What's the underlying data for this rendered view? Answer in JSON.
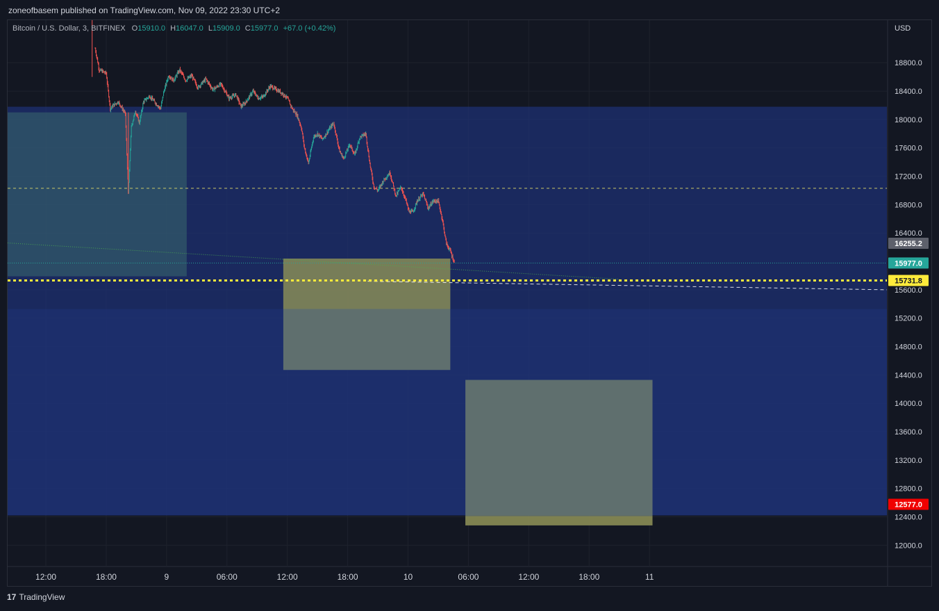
{
  "publisher_line": "zoneofbasem published on TradingView.com, Nov 09, 2022 23:30 UTC+2",
  "legend": {
    "symbol": "Bitcoin / U.S. Dollar, 3, BITFINEX",
    "open_key": "O",
    "open": "15910.0",
    "high_key": "H",
    "high": "16047.0",
    "low_key": "L",
    "low": "15909.0",
    "close_key": "C",
    "close": "15977.0",
    "change": "+67.0 (+0.42%)"
  },
  "footer": {
    "logo_glyph": "17",
    "brand": "TradingView"
  },
  "colors": {
    "background": "#131722",
    "up": "#26a69a",
    "down": "#ef5350",
    "zone_blue": "#1e3278",
    "box_teal": "#3b6a6e",
    "box_grey": "#6b7a6e",
    "box_olive": "#8d8a48",
    "tag_last": "#26a69a",
    "tag_yellow": "#ffeb3b",
    "tag_red": "#f00000",
    "tag_grey": "#5d606b"
  },
  "chart_data": {
    "type": "candlestick",
    "currency": "USD",
    "ylim": [
      11700,
      19400
    ],
    "y_ticks": [
      "18800.0",
      "18400.0",
      "18000.0",
      "17600.0",
      "17200.0",
      "16800.0",
      "16400.0",
      "15600.0",
      "15200.0",
      "14800.0",
      "14400.0",
      "14000.0",
      "13600.0",
      "13200.0",
      "12800.0",
      "12400.0",
      "12000.0"
    ],
    "x_ticks": [
      "12:00",
      "18:00",
      "9",
      "06:00",
      "12:00",
      "18:00",
      "10",
      "06:00",
      "12:00",
      "18:00",
      "11"
    ],
    "x_tick_hours": [
      12,
      18,
      24,
      30,
      36,
      42,
      48,
      54,
      60,
      66,
      72
    ],
    "x_range_hours": [
      8.2,
      95.6
    ],
    "price_path": [
      [
        16.9,
        19000
      ],
      [
        17.3,
        18700
      ],
      [
        18.0,
        18650
      ],
      [
        18.4,
        18150
      ],
      [
        18.7,
        18200
      ],
      [
        19.2,
        18250
      ],
      [
        19.9,
        18080
      ],
      [
        20.2,
        16950
      ],
      [
        20.5,
        17900
      ],
      [
        20.9,
        18120
      ],
      [
        21.3,
        17950
      ],
      [
        21.7,
        18250
      ],
      [
        22.3,
        18330
      ],
      [
        22.8,
        18250
      ],
      [
        23.4,
        18150
      ],
      [
        23.7,
        18380
      ],
      [
        24.2,
        18620
      ],
      [
        24.7,
        18550
      ],
      [
        25.3,
        18700
      ],
      [
        25.9,
        18550
      ],
      [
        26.5,
        18620
      ],
      [
        27.1,
        18450
      ],
      [
        27.9,
        18570
      ],
      [
        28.6,
        18420
      ],
      [
        29.4,
        18500
      ],
      [
        30.2,
        18300
      ],
      [
        30.9,
        18350
      ],
      [
        31.4,
        18180
      ],
      [
        31.9,
        18250
      ],
      [
        32.6,
        18400
      ],
      [
        33.1,
        18300
      ],
      [
        33.6,
        18320
      ],
      [
        34.3,
        18470
      ],
      [
        34.8,
        18430
      ],
      [
        35.4,
        18380
      ],
      [
        36.0,
        18300
      ],
      [
        36.5,
        18150
      ],
      [
        37.0,
        18050
      ],
      [
        37.4,
        17880
      ],
      [
        37.7,
        17600
      ],
      [
        38.1,
        17380
      ],
      [
        38.6,
        17750
      ],
      [
        39.0,
        17800
      ],
      [
        39.5,
        17720
      ],
      [
        40.1,
        17850
      ],
      [
        40.6,
        17950
      ],
      [
        41.2,
        17550
      ],
      [
        41.6,
        17450
      ],
      [
        42.2,
        17650
      ],
      [
        42.7,
        17500
      ],
      [
        43.2,
        17750
      ],
      [
        43.8,
        17800
      ],
      [
        44.2,
        17380
      ],
      [
        44.6,
        17050
      ],
      [
        45.0,
        17000
      ],
      [
        45.6,
        17150
      ],
      [
        46.2,
        17250
      ],
      [
        46.8,
        16920
      ],
      [
        47.3,
        17050
      ],
      [
        47.8,
        16850
      ],
      [
        48.1,
        16700
      ],
      [
        48.5,
        16700
      ],
      [
        48.9,
        16850
      ],
      [
        49.5,
        16950
      ],
      [
        50.0,
        16750
      ],
      [
        50.5,
        16850
      ],
      [
        51.0,
        16850
      ],
      [
        51.4,
        16600
      ],
      [
        51.8,
        16250
      ],
      [
        52.2,
        16150
      ],
      [
        52.6,
        15980
      ]
    ],
    "last_hour": 52.6,
    "zones": [
      {
        "name": "upper-zone",
        "from": 15330,
        "to": 18180,
        "x_from_hour": 8.2,
        "x_to_hour": 95.6
      },
      {
        "name": "lower-zone",
        "from": 12420,
        "to": 15330,
        "x_from_hour": 8.2,
        "x_to_hour": 95.6
      }
    ],
    "boxes": [
      {
        "name": "teal-box",
        "top": 18100,
        "bottom": 15790,
        "x_from_hour": 8.2,
        "x_to_hour": 26.0
      },
      {
        "name": "grey-box-1",
        "top": 16040,
        "bottom": 14470,
        "x_from_hour": 35.6,
        "x_to_hour": 52.2,
        "olive_bottom": 15330
      },
      {
        "name": "grey-box-2",
        "top": 14330,
        "bottom": 12280,
        "x_from_hour": 53.7,
        "x_to_hour": 72.3,
        "olive_top": 12410
      }
    ],
    "levels": [
      {
        "name": "dashed-level",
        "price": 17030,
        "style": "dashed",
        "color": "#c9c76a"
      },
      {
        "name": "yellow-level",
        "price": 15731.8,
        "style": "dotted-thick",
        "color": "#ffeb3b"
      },
      {
        "name": "last-price-line",
        "price": 15977.0,
        "style": "dotted",
        "color": "#26a69a"
      }
    ],
    "trendlines": [
      {
        "name": "green-trend",
        "from": [
          8.2,
          16260
        ],
        "to": [
          69.0,
          15750
        ],
        "color": "#4caf50",
        "style": "dotted"
      },
      {
        "name": "white-trend",
        "from": [
          44.0,
          15720
        ],
        "to": [
          95.6,
          15600
        ],
        "color": "#ffffff",
        "style": "dashed"
      }
    ],
    "price_tags": [
      {
        "name": "price-tag-16255",
        "price": 16255.2,
        "label": "16255.2",
        "bg": "#5d606b",
        "fg": "#ffffff"
      },
      {
        "name": "price-tag-last",
        "price": 15977.0,
        "label": "15977.0",
        "bg": "#26a69a",
        "fg": "#ffffff"
      },
      {
        "name": "price-tag-yellow",
        "price": 15731.8,
        "label": "15731.8",
        "bg": "#ffeb3b",
        "fg": "#131722"
      },
      {
        "name": "price-tag-red",
        "price": 12577.0,
        "label": "12577.0",
        "bg": "#f00000",
        "fg": "#ffffff"
      }
    ]
  }
}
